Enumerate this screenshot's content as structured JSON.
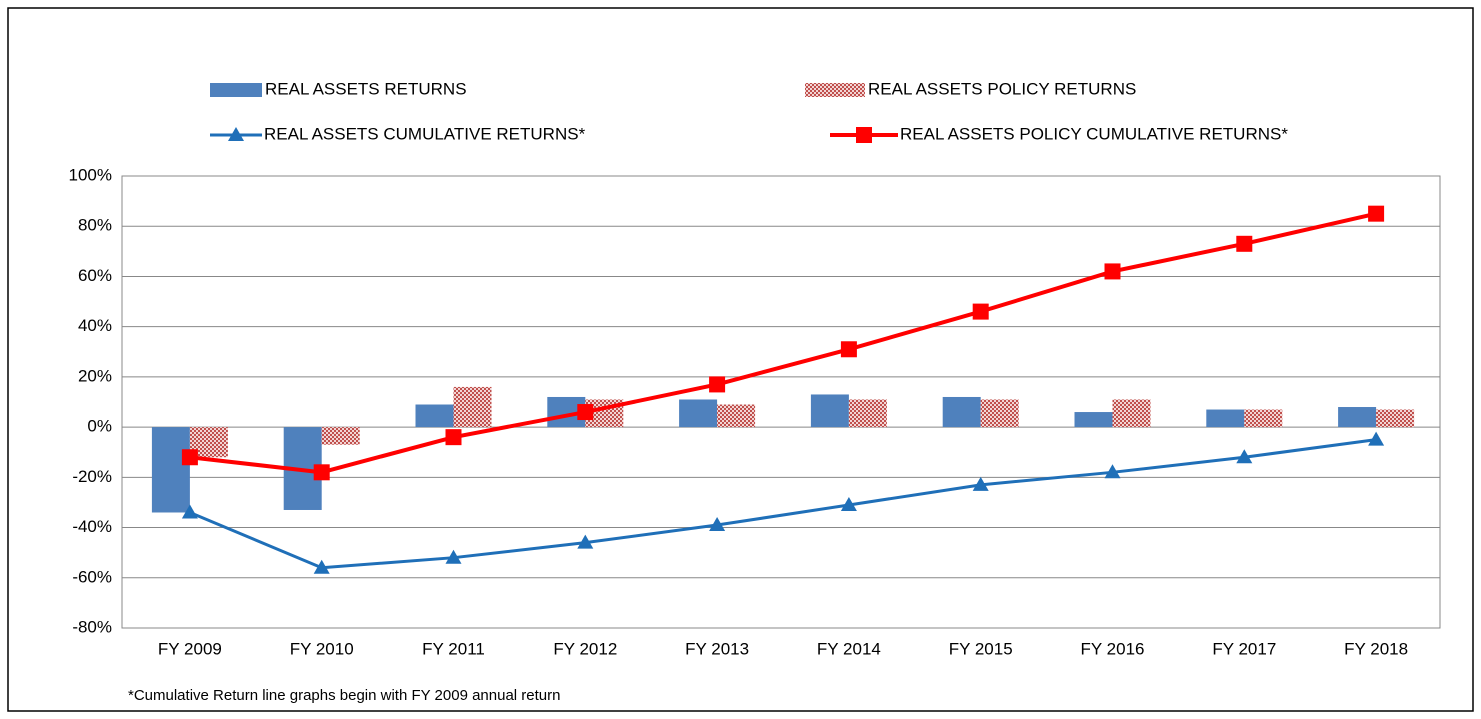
{
  "chart_data": {
    "type": "bar",
    "categories": [
      "FY 2009",
      "FY 2010",
      "FY 2011",
      "FY 2012",
      "FY 2013",
      "FY 2014",
      "FY 2015",
      "FY 2016",
      "FY 2017",
      "FY 2018"
    ],
    "series": [
      {
        "name": "REAL ASSETS RETURNS",
        "type": "bar",
        "color": "#4f81bd",
        "values": [
          -34,
          -33,
          9,
          12,
          11,
          13,
          12,
          6,
          7,
          8
        ]
      },
      {
        "name": "REAL ASSETS POLICY RETURNS",
        "type": "bar",
        "color": "#c0504d",
        "pattern": "checker",
        "values": [
          -12,
          -7,
          16,
          11,
          9,
          11,
          11,
          11,
          7,
          7
        ]
      },
      {
        "name": "REAL ASSETS CUMULATIVE RETURNS*",
        "type": "line",
        "marker": "triangle",
        "color": "#1f6fb8",
        "values": [
          -34,
          -56,
          -52,
          -46,
          -39,
          -31,
          -23,
          -18,
          -12,
          -5
        ]
      },
      {
        "name": "REAL ASSETS POLICY CUMULATIVE RETURNS*",
        "type": "line",
        "marker": "square",
        "color": "#ff0000",
        "values": [
          -12,
          -18,
          -4,
          6,
          17,
          31,
          46,
          62,
          73,
          85
        ]
      }
    ],
    "ylim": [
      -80,
      100
    ],
    "yticks": [
      {
        "value": -80,
        "label": "-80%"
      },
      {
        "value": -60,
        "label": "-60%"
      },
      {
        "value": -40,
        "label": "-40%"
      },
      {
        "value": -20,
        "label": "-20%"
      },
      {
        "value": 0,
        "label": "0%"
      },
      {
        "value": 20,
        "label": "20%"
      },
      {
        "value": 40,
        "label": "40%"
      },
      {
        "value": 60,
        "label": "60%"
      },
      {
        "value": 80,
        "label": "80%"
      },
      {
        "value": 100,
        "label": "100%"
      }
    ],
    "grid": true,
    "legend": "top",
    "footnote": "*Cumulative Return line graphs begin with FY 2009 annual return"
  }
}
